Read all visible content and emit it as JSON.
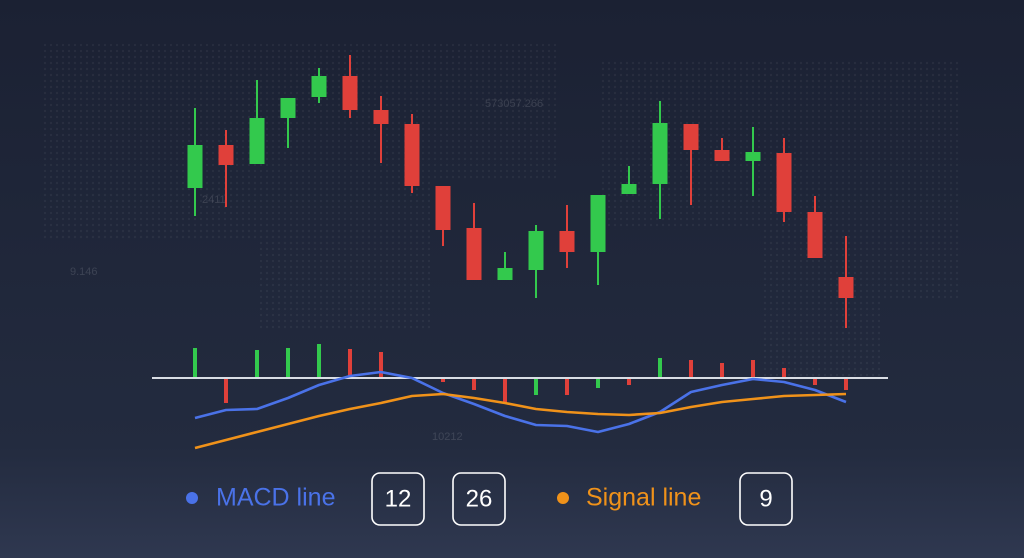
{
  "chart_data": {
    "type": "candlestick",
    "ylim": [
      0,
      280
    ],
    "up_color": "#33c94d",
    "down_color": "#e0403a",
    "open": [
      142,
      185,
      166,
      212,
      233,
      254,
      220,
      206,
      144,
      102,
      50,
      60,
      99,
      78,
      136,
      146,
      206,
      180,
      169,
      177,
      118,
      53
    ],
    "high": [
      222,
      200,
      250,
      232,
      262,
      275,
      234,
      216,
      144,
      127,
      78,
      105,
      125,
      135,
      164,
      229,
      206,
      192,
      203,
      192,
      134,
      94
    ],
    "low": [
      114,
      123,
      166,
      182,
      227,
      212,
      167,
      137,
      84,
      50,
      50,
      32,
      62,
      45,
      136,
      111,
      125,
      169,
      134,
      108,
      72,
      2
    ],
    "close": [
      185,
      165,
      212,
      232,
      254,
      220,
      206,
      144,
      100,
      50,
      62,
      99,
      78,
      135,
      146,
      207,
      180,
      169,
      178,
      118,
      72,
      32
    ],
    "y2lim": [
      -82,
      38
    ],
    "histogram": {
      "values": [
        30,
        -25,
        28,
        30,
        34,
        29,
        26,
        0,
        -4,
        -12,
        -25,
        -17,
        -17,
        -10,
        -7,
        20,
        18,
        15,
        18,
        10,
        -7,
        -12
      ],
      "colors": [
        "#33c94d",
        "#e0403a",
        "#33c94d",
        "#33c94d",
        "#33c94d",
        "#e0403a",
        "#e0403a",
        "#e0403a",
        "#e0403a",
        "#e0403a",
        "#e0403a",
        "#33c94d",
        "#e0403a",
        "#33c94d",
        "#e0403a",
        "#33c94d",
        "#e0403a",
        "#e0403a",
        "#e0403a",
        "#e0403a",
        "#e0403a",
        "#e0403a"
      ]
    },
    "series": [
      {
        "name": "MACD line",
        "color": "#4a72e8",
        "axis": "y2",
        "values": [
          -40,
          -32,
          -31,
          -20,
          -7,
          2,
          6,
          0,
          -15,
          -26,
          -38,
          -47,
          -48,
          -54,
          -46,
          -34,
          -14,
          -7,
          -1,
          -4,
          -12,
          -24
        ]
      },
      {
        "name": "Signal line",
        "color": "#f0921a",
        "axis": "y2",
        "values": [
          -70,
          -62,
          -54,
          -46,
          -38,
          -31,
          -25,
          -18,
          -16,
          -20,
          -25,
          -31,
          -34,
          -36,
          -37,
          -35,
          -29,
          -24,
          -21,
          -18,
          -17,
          -16
        ]
      }
    ],
    "parameters": {
      "macd": [
        "12",
        "26"
      ],
      "signal": [
        "9"
      ]
    },
    "annotations": [
      "573057.266",
      "2411",
      "9.146",
      "10212"
    ]
  }
}
